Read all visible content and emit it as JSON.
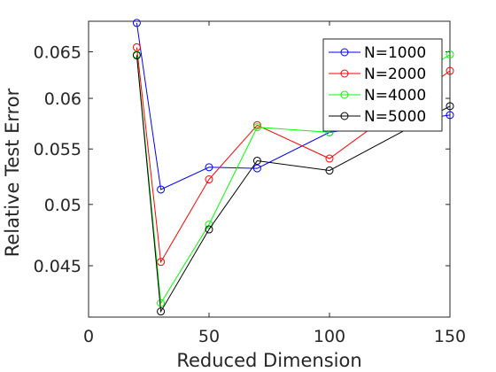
{
  "chart_data": {
    "type": "line",
    "xlabel": "Reduced Dimension",
    "ylabel": "Relative Test Error",
    "xlim": [
      0,
      150
    ],
    "ylim": [
      0.0412,
      0.0685
    ],
    "y_scale": "log",
    "xticks": [
      {
        "value": 0,
        "label": "0"
      },
      {
        "value": 50,
        "label": "50"
      },
      {
        "value": 100,
        "label": "100"
      },
      {
        "value": 150,
        "label": "150"
      }
    ],
    "yticks": [
      {
        "value": 0.045,
        "label": "0.045"
      },
      {
        "value": 0.05,
        "label": "0.05"
      },
      {
        "value": 0.055,
        "label": "0.055"
      },
      {
        "value": 0.06,
        "label": "0.06"
      },
      {
        "value": 0.065,
        "label": "0.065"
      }
    ],
    "grid": false,
    "legend_position": "top-right",
    "x": [
      20,
      30,
      50,
      70,
      100,
      150
    ],
    "series": [
      {
        "name": "N=1000",
        "color": "#0000ff",
        "values": [
          0.0683,
          0.0513,
          0.0533,
          0.0532,
          0.0566,
          0.0583
        ]
      },
      {
        "name": "N=2000",
        "color": "#ff0000",
        "values": [
          0.0655,
          0.0453,
          0.0522,
          0.0573,
          0.0541,
          0.0629
        ]
      },
      {
        "name": "N=4000",
        "color": "#00ff00",
        "values": [
          0.0647,
          0.0422,
          0.0483,
          0.0571,
          0.0566,
          0.0647
        ]
      },
      {
        "name": "N=5000",
        "color": "#000000",
        "values": [
          0.0646,
          0.0416,
          0.0479,
          0.0539,
          0.053,
          0.0592
        ]
      }
    ]
  }
}
